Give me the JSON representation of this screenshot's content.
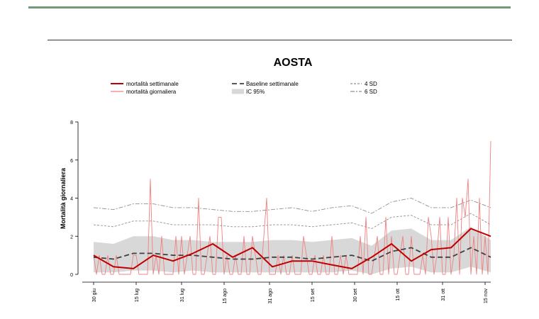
{
  "colors": {
    "top_rule": "#6e9a7a",
    "weekly": "#c00000",
    "daily": "#f08080",
    "baseline": "#404040",
    "ci": "#d8d8d8",
    "sd_lines": "#909090"
  },
  "chart_data": {
    "type": "line",
    "title": "AOSTA",
    "xlabel": "",
    "ylabel": "Mortalità giornaliera",
    "ylim": [
      0,
      8
    ],
    "yticks": [
      0,
      2,
      4,
      6,
      8
    ],
    "xlim": [
      -4,
      140
    ],
    "x_unit": "days from 30 giu",
    "x_ticks": [
      {
        "x": 0,
        "label": "30 giu"
      },
      {
        "x": 15,
        "label": "15 lug"
      },
      {
        "x": 31,
        "label": "31 lug"
      },
      {
        "x": 46,
        "label": "15 ago"
      },
      {
        "x": 62,
        "label": "31 ago"
      },
      {
        "x": 77,
        "label": "15 set"
      },
      {
        "x": 92,
        "label": "30 set"
      },
      {
        "x": 107,
        "label": "15 ott"
      },
      {
        "x": 123,
        "label": "31 ott"
      },
      {
        "x": 138,
        "label": "15 nov"
      }
    ],
    "legend": {
      "placement": "top",
      "items": [
        {
          "label": "mortalità settimanale",
          "style": "weekly"
        },
        {
          "label": "mortalità giornaliera",
          "style": "daily"
        },
        {
          "label": "Baseline settimanale",
          "style": "baseline"
        },
        {
          "label": "IC 95%",
          "style": "ci"
        },
        {
          "label": "4 SD",
          "style": "sd4"
        },
        {
          "label": "6 SD",
          "style": "sd6"
        }
      ]
    },
    "weekly_x": [
      0,
      7,
      14,
      21,
      28,
      35,
      42,
      49,
      56,
      63,
      70,
      77,
      84,
      91,
      98,
      105,
      112,
      119,
      126,
      133,
      140
    ],
    "series": [
      {
        "name": "mortalità settimanale",
        "style": "weekly",
        "values": [
          1.0,
          0.4,
          0.3,
          1.0,
          0.7,
          1.1,
          1.6,
          0.9,
          1.4,
          0.4,
          0.7,
          0.7,
          0.5,
          0.3,
          0.9,
          1.6,
          0.7,
          1.3,
          1.4,
          2.4,
          2.0
        ]
      },
      {
        "name": "Baseline settimanale",
        "style": "baseline",
        "values": [
          0.9,
          0.8,
          1.1,
          1.1,
          1.0,
          1.0,
          0.9,
          0.8,
          0.8,
          0.9,
          0.9,
          0.8,
          0.9,
          1.0,
          0.7,
          1.2,
          1.4,
          0.9,
          0.9,
          1.4,
          0.9
        ]
      },
      {
        "name": "4 SD",
        "style": "sd4",
        "values": [
          2.6,
          2.5,
          2.8,
          2.8,
          2.6,
          2.6,
          2.6,
          2.5,
          2.5,
          2.6,
          2.6,
          2.5,
          2.6,
          2.7,
          2.4,
          3.0,
          3.1,
          2.6,
          2.6,
          3.2,
          2.6
        ]
      },
      {
        "name": "6 SD",
        "style": "sd6",
        "values": [
          3.5,
          3.4,
          3.7,
          3.7,
          3.5,
          3.5,
          3.4,
          3.3,
          3.3,
          3.4,
          3.5,
          3.3,
          3.5,
          3.6,
          3.2,
          3.8,
          4.0,
          3.5,
          3.5,
          3.9,
          3.5
        ]
      },
      {
        "name": "IC 95%",
        "style": "ci",
        "lower": [
          0.1,
          0.1,
          0.2,
          0.2,
          0.1,
          0.2,
          0.1,
          0.1,
          0.1,
          0.1,
          0.1,
          0.1,
          0.1,
          0.2,
          0.0,
          0.3,
          0.4,
          0.1,
          0.1,
          0.4,
          0.1
        ],
        "upper": [
          1.7,
          1.6,
          2.0,
          2.0,
          1.8,
          1.8,
          1.7,
          1.7,
          1.7,
          1.8,
          1.8,
          1.7,
          1.8,
          1.9,
          1.5,
          2.3,
          2.4,
          1.8,
          1.8,
          2.5,
          1.8
        ]
      },
      {
        "name": "mortalità giornaliera",
        "style": "daily",
        "x_start": 0,
        "values": [
          1,
          0,
          1,
          0,
          0,
          1,
          0,
          0,
          1,
          0,
          0,
          0,
          0,
          0,
          1,
          1,
          0,
          0,
          0,
          0,
          5,
          0,
          1,
          0,
          2,
          0,
          0,
          0,
          0,
          2,
          0,
          2,
          0,
          1,
          2,
          0,
          0,
          4,
          0,
          0,
          1,
          2,
          0,
          0,
          3,
          3,
          0,
          1,
          0,
          0,
          1,
          0,
          0,
          2,
          0,
          0,
          2,
          1,
          0,
          0,
          2,
          4,
          0,
          0,
          0,
          1,
          0,
          1,
          0,
          0,
          1,
          0,
          0,
          0,
          2,
          1,
          0,
          0,
          1,
          0,
          0,
          1,
          0,
          0,
          2,
          0,
          0,
          1,
          0,
          1,
          0,
          0,
          0,
          0,
          2,
          0,
          3,
          0,
          0,
          1,
          2,
          0,
          0,
          3,
          0,
          2,
          0,
          0,
          1,
          2,
          0,
          0,
          2,
          0,
          0,
          0,
          1,
          0,
          3,
          2,
          0,
          1,
          3,
          0,
          0,
          3,
          0,
          1,
          4,
          0,
          4,
          3,
          5,
          0,
          2,
          0,
          4,
          0,
          2,
          0,
          7
        ]
      }
    ]
  }
}
